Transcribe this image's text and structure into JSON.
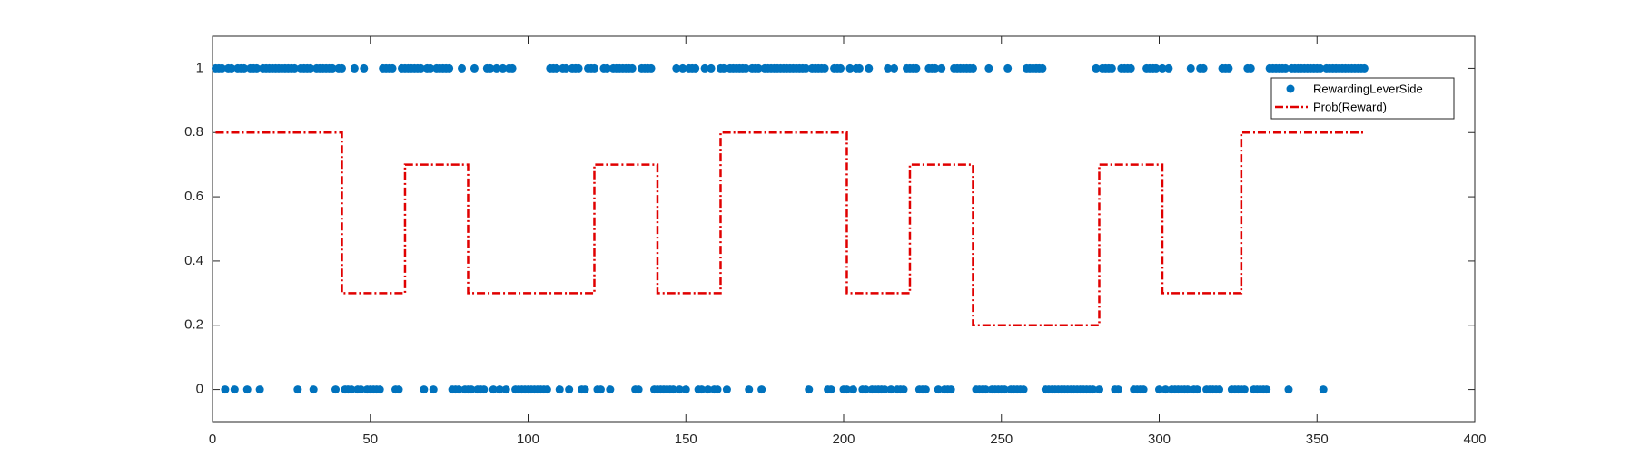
{
  "chart_data": {
    "type": "scatter",
    "xlim": [
      0,
      400
    ],
    "xticks": [
      0,
      50,
      100,
      150,
      200,
      250,
      300,
      350,
      400
    ],
    "ylim": [
      -0.1,
      1.1
    ],
    "yticks": [
      0,
      0.2,
      0.4,
      0.6,
      0.8,
      1
    ],
    "grid": false,
    "legend": "northeast",
    "series": [
      {
        "name": "RewardingLeverSide",
        "type": "scatter",
        "color": "#0072bd",
        "x": [
          1,
          2,
          3,
          4,
          5,
          6,
          7,
          8,
          9,
          10,
          11,
          12,
          13,
          14,
          15,
          16,
          17,
          18,
          19,
          20,
          21,
          22,
          23,
          24,
          25,
          26,
          27,
          28,
          29,
          30,
          31,
          32,
          33,
          34,
          35,
          36,
          37,
          38,
          39,
          40,
          41,
          42,
          43,
          44,
          45,
          46,
          47,
          48,
          49,
          50,
          51,
          52,
          53,
          54,
          55,
          56,
          57,
          58,
          59,
          60,
          61,
          62,
          63,
          64,
          65,
          66,
          67,
          68,
          69,
          70,
          71,
          72,
          73,
          74,
          75,
          76,
          77,
          78,
          79,
          80,
          81,
          82,
          83,
          84,
          85,
          86,
          87,
          88,
          89,
          90,
          91,
          92,
          93,
          94,
          95,
          96,
          97,
          98,
          99,
          100,
          101,
          102,
          103,
          104,
          105,
          106,
          107,
          108,
          109,
          110,
          111,
          112,
          113,
          114,
          115,
          116,
          117,
          118,
          119,
          120,
          121,
          122,
          123,
          124,
          125,
          126,
          127,
          128,
          129,
          130,
          131,
          132,
          133,
          134,
          135,
          136,
          137,
          138,
          139,
          140,
          141,
          142,
          143,
          144,
          145,
          146,
          147,
          148,
          149,
          150,
          151,
          152,
          153,
          154,
          155,
          156,
          157,
          158,
          159,
          160,
          161,
          162,
          163,
          164,
          165,
          166,
          167,
          168,
          169,
          170,
          171,
          172,
          173,
          174,
          175,
          176,
          177,
          178,
          179,
          180,
          181,
          182,
          183,
          184,
          185,
          186,
          187,
          188,
          189,
          190,
          191,
          192,
          193,
          194,
          195,
          196,
          197,
          198,
          199,
          200,
          201,
          202,
          203,
          204,
          205,
          206,
          207,
          208,
          209,
          210,
          211,
          212,
          213,
          214,
          215,
          216,
          217,
          218,
          219,
          220,
          221,
          222,
          223,
          224,
          225,
          226,
          227,
          228,
          229,
          230,
          231,
          232,
          233,
          234,
          235,
          236,
          237,
          238,
          239,
          240,
          241,
          242,
          243,
          244,
          245,
          246,
          247,
          248,
          249,
          250,
          251,
          252,
          253,
          254,
          255,
          256,
          257,
          258,
          259,
          260,
          261,
          262,
          263,
          264,
          265,
          266,
          267,
          268,
          269,
          270,
          271,
          272,
          273,
          274,
          275,
          276,
          277,
          278,
          279,
          280,
          281,
          282,
          283,
          284,
          285,
          286,
          287,
          288,
          289,
          290,
          291,
          292,
          293,
          294,
          295,
          296,
          297,
          298,
          299,
          300,
          301,
          302,
          303,
          304,
          305,
          306,
          307,
          308,
          309,
          310,
          311,
          312,
          313,
          314,
          315,
          316,
          317,
          318,
          319,
          320,
          321,
          322,
          323,
          324,
          325,
          326,
          327,
          328,
          329,
          330,
          331,
          332,
          333,
          334,
          335,
          336,
          337,
          338,
          339,
          340,
          341,
          342,
          343,
          344,
          345,
          346,
          347,
          348,
          349,
          350,
          351,
          352,
          353,
          354,
          355,
          356,
          357,
          358,
          359,
          360,
          361,
          362,
          363,
          364,
          365
        ],
        "values": [
          1,
          1,
          1,
          0,
          1,
          1,
          0,
          1,
          1,
          1,
          0,
          1,
          1,
          1,
          0,
          1,
          1,
          1,
          1,
          1,
          1,
          1,
          1,
          1,
          1,
          1,
          0,
          1,
          1,
          1,
          1,
          0,
          1,
          1,
          1,
          1,
          1,
          1,
          0,
          1,
          1,
          0,
          0,
          0,
          1,
          0,
          0,
          1,
          0,
          0,
          0,
          0,
          0,
          1,
          1,
          1,
          1,
          0,
          0,
          1,
          1,
          1,
          1,
          1,
          1,
          1,
          0,
          1,
          1,
          0,
          1,
          1,
          1,
          1,
          1,
          0,
          0,
          0,
          1,
          0,
          0,
          0,
          1,
          0,
          0,
          0,
          1,
          1,
          0,
          1,
          0,
          1,
          0,
          1,
          1,
          0,
          0,
          0,
          0,
          0,
          0,
          0,
          0,
          0,
          0,
          0,
          1,
          1,
          1,
          0,
          1,
          1,
          0,
          1,
          1,
          1,
          0,
          0,
          1,
          1,
          1,
          0,
          0,
          1,
          1,
          0,
          1,
          1,
          1,
          1,
          1,
          1,
          1,
          0,
          0,
          1,
          1,
          1,
          1,
          0,
          0,
          0,
          0,
          0,
          0,
          0,
          1,
          0,
          1,
          0,
          1,
          1,
          1,
          0,
          0,
          1,
          0,
          1,
          0,
          0,
          1,
          1,
          0,
          1,
          1,
          1,
          1,
          1,
          1,
          0,
          1,
          1,
          1,
          0,
          1,
          1,
          1,
          1,
          1,
          1,
          1,
          1,
          1,
          1,
          1,
          1,
          1,
          1,
          0,
          1,
          1,
          1,
          1,
          1,
          0,
          0,
          1,
          1,
          1,
          0,
          0,
          1,
          0,
          1,
          1,
          0,
          0,
          1,
          0,
          0,
          0,
          0,
          0,
          1,
          0,
          1,
          0,
          0,
          0,
          1,
          1,
          1,
          1,
          0,
          0,
          0,
          1,
          1,
          1,
          0,
          1,
          0,
          0,
          0,
          1,
          1,
          1,
          1,
          1,
          1,
          1,
          0,
          0,
          0,
          0,
          1,
          0,
          0,
          0,
          0,
          0,
          1,
          0,
          0,
          0,
          0,
          0,
          1,
          1,
          1,
          1,
          1,
          1,
          0,
          0,
          0,
          0,
          0,
          0,
          0,
          0,
          0,
          0,
          0,
          0,
          0,
          0,
          0,
          0,
          1,
          0,
          1,
          1,
          1,
          1,
          0,
          0,
          1,
          1,
          1,
          1,
          0,
          0,
          0,
          0,
          1,
          1,
          1,
          1,
          0,
          1,
          0,
          1,
          0,
          0,
          0,
          0,
          0,
          0,
          1,
          0,
          0,
          1,
          1,
          0,
          0,
          0,
          0,
          0,
          1,
          1,
          1,
          0,
          0,
          0,
          0,
          0,
          1,
          1,
          0,
          0,
          0,
          0,
          0,
          1,
          1,
          1,
          1,
          1,
          1,
          0,
          1,
          1,
          1,
          1,
          1,
          1,
          1,
          1,
          1,
          1,
          0,
          1,
          1,
          1,
          1,
          1,
          1,
          1,
          1,
          1,
          1,
          1,
          1,
          1
        ]
      },
      {
        "name": "Prob(Reward)",
        "type": "stairs",
        "color": "#e00000",
        "x": [
          1,
          41,
          61,
          81,
          121,
          141,
          161,
          201,
          221,
          241,
          281,
          301,
          326,
          365
        ],
        "values": [
          0.8,
          0.3,
          0.7,
          0.3,
          0.7,
          0.3,
          0.8,
          0.3,
          0.7,
          0.2,
          0.7,
          0.3,
          0.8,
          0.8
        ]
      }
    ]
  }
}
